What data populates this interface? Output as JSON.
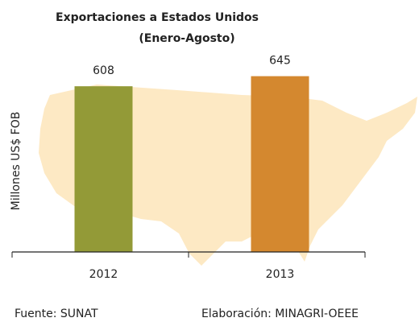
{
  "chart_data": {
    "type": "bar",
    "title": "Exportaciones a Estados Unidos",
    "subtitle": "(Enero-Agosto)",
    "y_label": "Millones US$ FOB",
    "categories": [
      "2012",
      "2013"
    ],
    "values": [
      608,
      645
    ],
    "colors": [
      "#939a37",
      "#d4882f"
    ],
    "ylim": [
      0,
      700
    ],
    "source": "Fuente: SUNAT",
    "credit": "Elaboración: MINAGRI-OEEE"
  }
}
